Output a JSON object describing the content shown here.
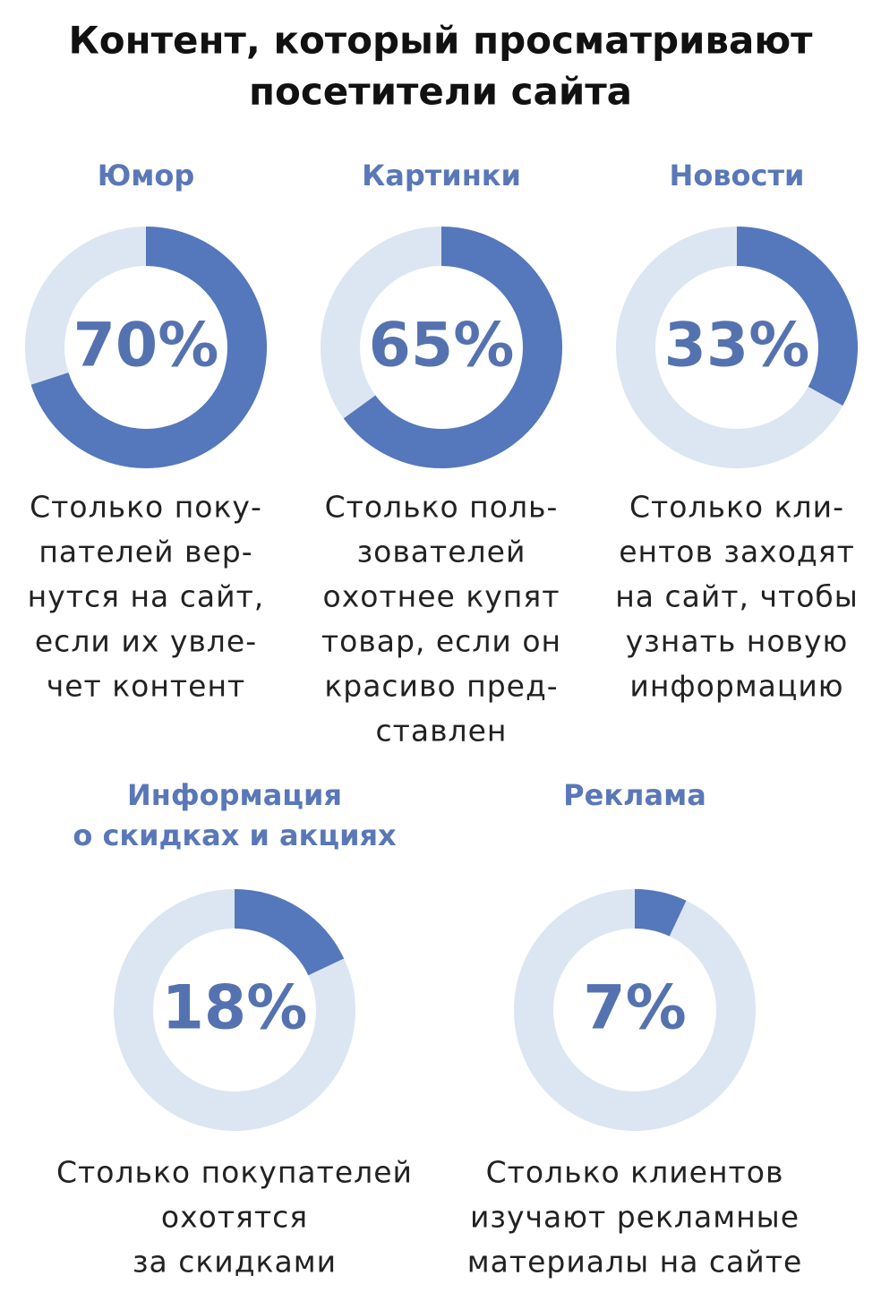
{
  "title": [
    "Контент, который просматривают",
    "посетители сайта"
  ],
  "chart_data": [
    {
      "type": "donut",
      "title": [
        "Юмор"
      ],
      "values": [
        70
      ],
      "value_labels": [
        "70%"
      ],
      "color": "#5577bb",
      "track_color": "#dce6f2",
      "caption": [
        "Столько поку-",
        "пателей вер-",
        "нутся на сайт,",
        "если их увле-",
        "чет контент"
      ]
    },
    {
      "type": "donut",
      "title": [
        "Картинки"
      ],
      "values": [
        65
      ],
      "value_labels": [
        "65%"
      ],
      "color": "#5577bb",
      "track_color": "#dce6f2",
      "caption": [
        "Столько поль-",
        "зователей",
        "охотнее купят",
        "товар, если он",
        "красиво пред-",
        "ставлен"
      ]
    },
    {
      "type": "donut",
      "title": [
        "Новости"
      ],
      "values": [
        33
      ],
      "value_labels": [
        "33%"
      ],
      "color": "#5577bb",
      "track_color": "#dce6f2",
      "caption": [
        "Столько кли-",
        "ентов заходят",
        "на сайт, чтобы",
        "узнать новую",
        "информацию"
      ]
    },
    {
      "type": "donut",
      "title": [
        "Информация",
        "о скидках и акциях"
      ],
      "values": [
        18
      ],
      "value_labels": [
        "18%"
      ],
      "color": "#5577bb",
      "track_color": "#dce6f2",
      "caption": [
        "Столько покупателей",
        "охотятся",
        "за скидками"
      ]
    },
    {
      "type": "donut",
      "title": [
        "Реклама"
      ],
      "values": [
        7
      ],
      "value_labels": [
        "7%"
      ],
      "color": "#5577bb",
      "track_color": "#dce6f2",
      "caption": [
        "Столько клиентов",
        "изучают рекламные",
        "материалы на сайте"
      ]
    }
  ]
}
